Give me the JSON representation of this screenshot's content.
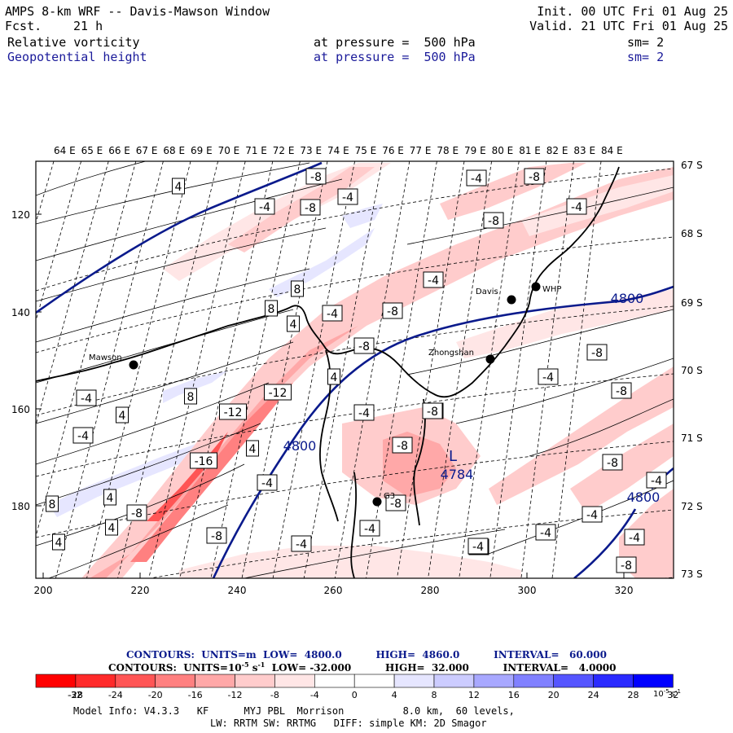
{
  "header": {
    "title": "AMPS 8-km WRF -- Davis-Mawson Window",
    "fcst_label": "Fcst.",
    "fcst_value": "21 h",
    "init": "Init. 00 UTC Fri 01 Aug 25",
    "valid": "Valid. 21 UTC Fri 01 Aug 25",
    "field1": "Relative vorticity",
    "field2": "Geopotential height",
    "pressure1": "at pressure =  500 hPa",
    "pressure2": "at pressure =  500 hPa",
    "sm1": "sm= 2",
    "sm2": "sm= 2"
  },
  "map": {
    "lon_labels": [
      "64 E",
      "65 E",
      "66 E",
      "67 E",
      "68 E",
      "69 E",
      "70 E",
      "71 E",
      "72 E",
      "73 E",
      "74 E",
      "75 E",
      "76 E",
      "77 E",
      "78 E",
      "79 E",
      "80 E",
      "81 E",
      "82 E",
      "83 E",
      "84 E"
    ],
    "lat_labels": [
      "67 S",
      "68 S",
      "69 S",
      "70 S",
      "71 S",
      "72 S",
      "73 S"
    ],
    "y_ticks": [
      "120",
      "140",
      "160",
      "180"
    ],
    "x_ticks": [
      "200",
      "220",
      "240",
      "260",
      "280",
      "300",
      "320"
    ],
    "stations": [
      {
        "name": "Mawson",
        "symbol": "dot"
      },
      {
        "name": "Davis",
        "symbol": "dot"
      },
      {
        "name": "WHP",
        "symbol": "dot"
      },
      {
        "name": "Zhongshan",
        "symbol": "dot"
      },
      {
        "name": "G3",
        "symbol": "dot"
      }
    ],
    "height_labels": [
      "4800",
      "4800",
      "4800",
      "4784"
    ],
    "low_marker": "L",
    "vort_labels": [
      "-8",
      "-4",
      "-8",
      "4",
      "-4",
      "-8",
      "-4",
      "-4",
      "-8",
      "-4",
      "8",
      "-4",
      "8",
      "-8",
      "-8",
      "4",
      "-8",
      "-4",
      "-12",
      "-12",
      "4",
      "-4",
      "8",
      "-4",
      "-16",
      "-8",
      "4",
      "-8",
      "-4",
      "-4",
      "8",
      "-4",
      "4",
      "-8",
      "4",
      "-8",
      "-4",
      "4",
      "-8",
      "-4",
      "-4",
      "-4",
      "-4",
      "-4",
      "-8",
      "-8",
      "-4",
      "-8",
      "4",
      "-4"
    ]
  },
  "legend": {
    "line1": "CONTOURS:  UNITS=m  LOW=  4800.0          HIGH=  4860.0          INTERVAL=   60.000",
    "line2_pre": "CONTOURS:  UNITS=10",
    "line2_exp": "-5",
    "line2_post": " s",
    "line2_exp2": "-1",
    "line2_rest": "  LOW= -32.000          HIGH=  32.000          INTERVAL=   4.0000",
    "colors": [
      "#ff0000",
      "#ff2a2a",
      "#ff5555",
      "#ff8080",
      "#ffa8a8",
      "#ffcccc",
      "#ffe6e6",
      "#ffffff",
      "#ffffff",
      "#e6e6ff",
      "#ccccff",
      "#a8a8ff",
      "#8080ff",
      "#5555ff",
      "#2a2aff",
      "#0000ff"
    ],
    "ticks": [
      "-32",
      "-28",
      "-24",
      "-20",
      "-16",
      "-12",
      "-8",
      "-4",
      "0",
      "4",
      "8",
      "12",
      "16",
      "20",
      "24",
      "28",
      "32"
    ],
    "unit": "10",
    "unit_exp": "-5",
    "unit_s": "s",
    "unit_exp2": "-1"
  },
  "footer": {
    "line1": "Model Info: V4.3.3   KF      MYJ PBL  Morrison          8.0 km,  60 levels,",
    "line2": "LW: RRTM SW: RRTMG   DIFF: simple KM: 2D Smagor"
  }
}
